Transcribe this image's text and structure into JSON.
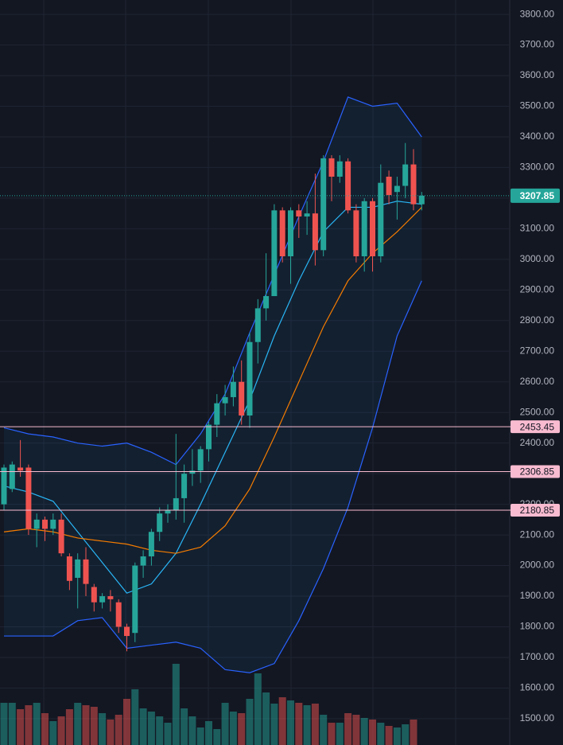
{
  "chart_data": {
    "type": "candlestick",
    "ylim": [
      1414,
      3847
    ],
    "yticks": [
      {
        "value": 1500,
        "label": "1500.00"
      },
      {
        "value": 1600,
        "label": "1600.00"
      },
      {
        "value": 1700,
        "label": "1700.00"
      },
      {
        "value": 1800,
        "label": "1800.00"
      },
      {
        "value": 1900,
        "label": "1900.00"
      },
      {
        "value": 2000,
        "label": "2000.00"
      },
      {
        "value": 2100,
        "label": "2100.00"
      },
      {
        "value": 2200,
        "label": "2200.00"
      },
      {
        "value": 2300,
        "label": "2300.00"
      },
      {
        "value": 2400,
        "label": "2400.00"
      },
      {
        "value": 2500,
        "label": "2500.00"
      },
      {
        "value": 2600,
        "label": "2600.00"
      },
      {
        "value": 2700,
        "label": "2700.00"
      },
      {
        "value": 2800,
        "label": "2800.00"
      },
      {
        "value": 2900,
        "label": "2900.00"
      },
      {
        "value": 3000,
        "label": "3000.00"
      },
      {
        "value": 3100,
        "label": "3100.00"
      },
      {
        "value": 3200,
        "label": "3200.00"
      },
      {
        "value": 3300,
        "label": "3300.00"
      },
      {
        "value": 3400,
        "label": "3400.00"
      },
      {
        "value": 3500,
        "label": "3500.00"
      },
      {
        "value": 3600,
        "label": "3600.00"
      },
      {
        "value": 3700,
        "label": "3700.00"
      },
      {
        "value": 3800,
        "label": "3800.00"
      }
    ],
    "grid": true,
    "up_color": "#26a69a",
    "down_color": "#ef5350",
    "open": [
      2200,
      2250,
      2320,
      2320,
      2120,
      2150,
      2120,
      2150,
      2030,
      1960,
      2020,
      1930,
      1880,
      1900,
      1880,
      1800,
      1780,
      2000,
      2030,
      2110,
      2170,
      2180,
      2220,
      2300,
      2310,
      2380,
      2460,
      2530,
      2550,
      2600,
      2490,
      2730,
      2840,
      2880,
      3160,
      3010,
      3160,
      3140,
      3150,
      3030,
      3330,
      3270,
      3320,
      3160,
      3010,
      3190,
      3010,
      3270,
      3220,
      3240,
      3310,
      3180
    ],
    "high": [
      2330,
      2340,
      2410,
      2330,
      2170,
      2160,
      2170,
      2170,
      2040,
      2040,
      2060,
      1940,
      1910,
      1920,
      1890,
      1810,
      2010,
      2050,
      2120,
      2190,
      2200,
      2430,
      2330,
      2380,
      2390,
      2470,
      2560,
      2590,
      2650,
      2670,
      2760,
      2870,
      3020,
      3180,
      3170,
      3170,
      3180,
      3190,
      3280,
      3340,
      3340,
      3340,
      3330,
      3180,
      3200,
      3200,
      3310,
      3290,
      3270,
      3380,
      3360,
      3220
    ],
    "low": [
      2180,
      2240,
      2290,
      2100,
      2060,
      2080,
      2100,
      2030,
      1920,
      1860,
      1900,
      1850,
      1860,
      1850,
      1780,
      1720,
      1750,
      1960,
      2000,
      2080,
      2140,
      2150,
      2140,
      2260,
      2270,
      2340,
      2420,
      2490,
      2520,
      2460,
      2450,
      2660,
      2800,
      2880,
      2990,
      2920,
      3070,
      3080,
      2980,
      3010,
      3190,
      3250,
      3150,
      2990,
      2960,
      2960,
      2990,
      3180,
      3130,
      3200,
      3160,
      3160
    ],
    "close": [
      2320,
      2330,
      2310,
      2120,
      2150,
      2120,
      2150,
      2040,
      1950,
      2020,
      1940,
      1880,
      1900,
      1890,
      1800,
      1770,
      2000,
      2030,
      2110,
      2170,
      2180,
      2220,
      2300,
      2310,
      2380,
      2460,
      2530,
      2550,
      2600,
      2490,
      2730,
      2840,
      2880,
      3160,
      3010,
      3160,
      3140,
      3150,
      3030,
      3330,
      3270,
      3320,
      3160,
      3010,
      3190,
      3010,
      3250,
      3210,
      3240,
      3310,
      3180,
      3207.85
    ],
    "volume": [
      53,
      53,
      45,
      50,
      53,
      40,
      30,
      36,
      45,
      53,
      50,
      48,
      40,
      32,
      38,
      58,
      70,
      46,
      42,
      36,
      28,
      102,
      46,
      36,
      22,
      30,
      20,
      53,
      42,
      40,
      58,
      90,
      66,
      52,
      60,
      56,
      53,
      50,
      52,
      38,
      28,
      28,
      40,
      38,
      34,
      32,
      28,
      24,
      22,
      26,
      32,
      null
    ],
    "indicators": [
      {
        "color": "#2962ff",
        "x": [
          0,
          3,
          6,
          9,
          12,
          15,
          18,
          21,
          24,
          27,
          30,
          33,
          36,
          39,
          42,
          45,
          48,
          51
        ],
        "values": [
          2450,
          2430,
          2420,
          2400,
          2390,
          2400,
          2370,
          2330,
          2430,
          2560,
          2760,
          2950,
          3140,
          3320,
          3530,
          3500,
          3510,
          3400
        ]
      },
      {
        "color": "#2962ff",
        "x": [
          0,
          3,
          6,
          9,
          12,
          15,
          18,
          21,
          24,
          27,
          30,
          33,
          36,
          39,
          42,
          45,
          48,
          51
        ],
        "values": [
          1770,
          1770,
          1770,
          1820,
          1830,
          1730,
          1740,
          1750,
          1730,
          1660,
          1650,
          1680,
          1820,
          1990,
          2190,
          2450,
          2750,
          2930
        ]
      },
      {
        "color": "#29b6f6",
        "x": [
          0,
          3,
          6,
          9,
          12,
          15,
          18,
          21,
          24,
          27,
          30,
          33,
          36,
          39,
          42,
          45,
          48,
          51
        ],
        "values": [
          2260,
          2240,
          2210,
          2110,
          2010,
          1910,
          1940,
          2040,
          2200,
          2370,
          2540,
          2750,
          2930,
          3090,
          3170,
          3170,
          3190,
          3180
        ]
      },
      {
        "color": "#f57c00",
        "x": [
          0,
          3,
          6,
          9,
          12,
          15,
          18,
          21,
          24,
          27,
          30,
          33,
          36,
          39,
          42,
          45,
          48,
          51
        ],
        "values": [
          2110,
          2120,
          2110,
          2090,
          2080,
          2070,
          2050,
          2040,
          2060,
          2130,
          2250,
          2420,
          2600,
          2780,
          2930,
          3020,
          3090,
          3170
        ]
      }
    ],
    "price_lines": [
      {
        "value": 2453.45,
        "color": "#f8bbd0"
      },
      {
        "value": 2306.85,
        "color": "#f8bbd0"
      },
      {
        "value": 2180.85,
        "color": "#f8bbd0"
      }
    ],
    "last_price": 3207.85
  }
}
